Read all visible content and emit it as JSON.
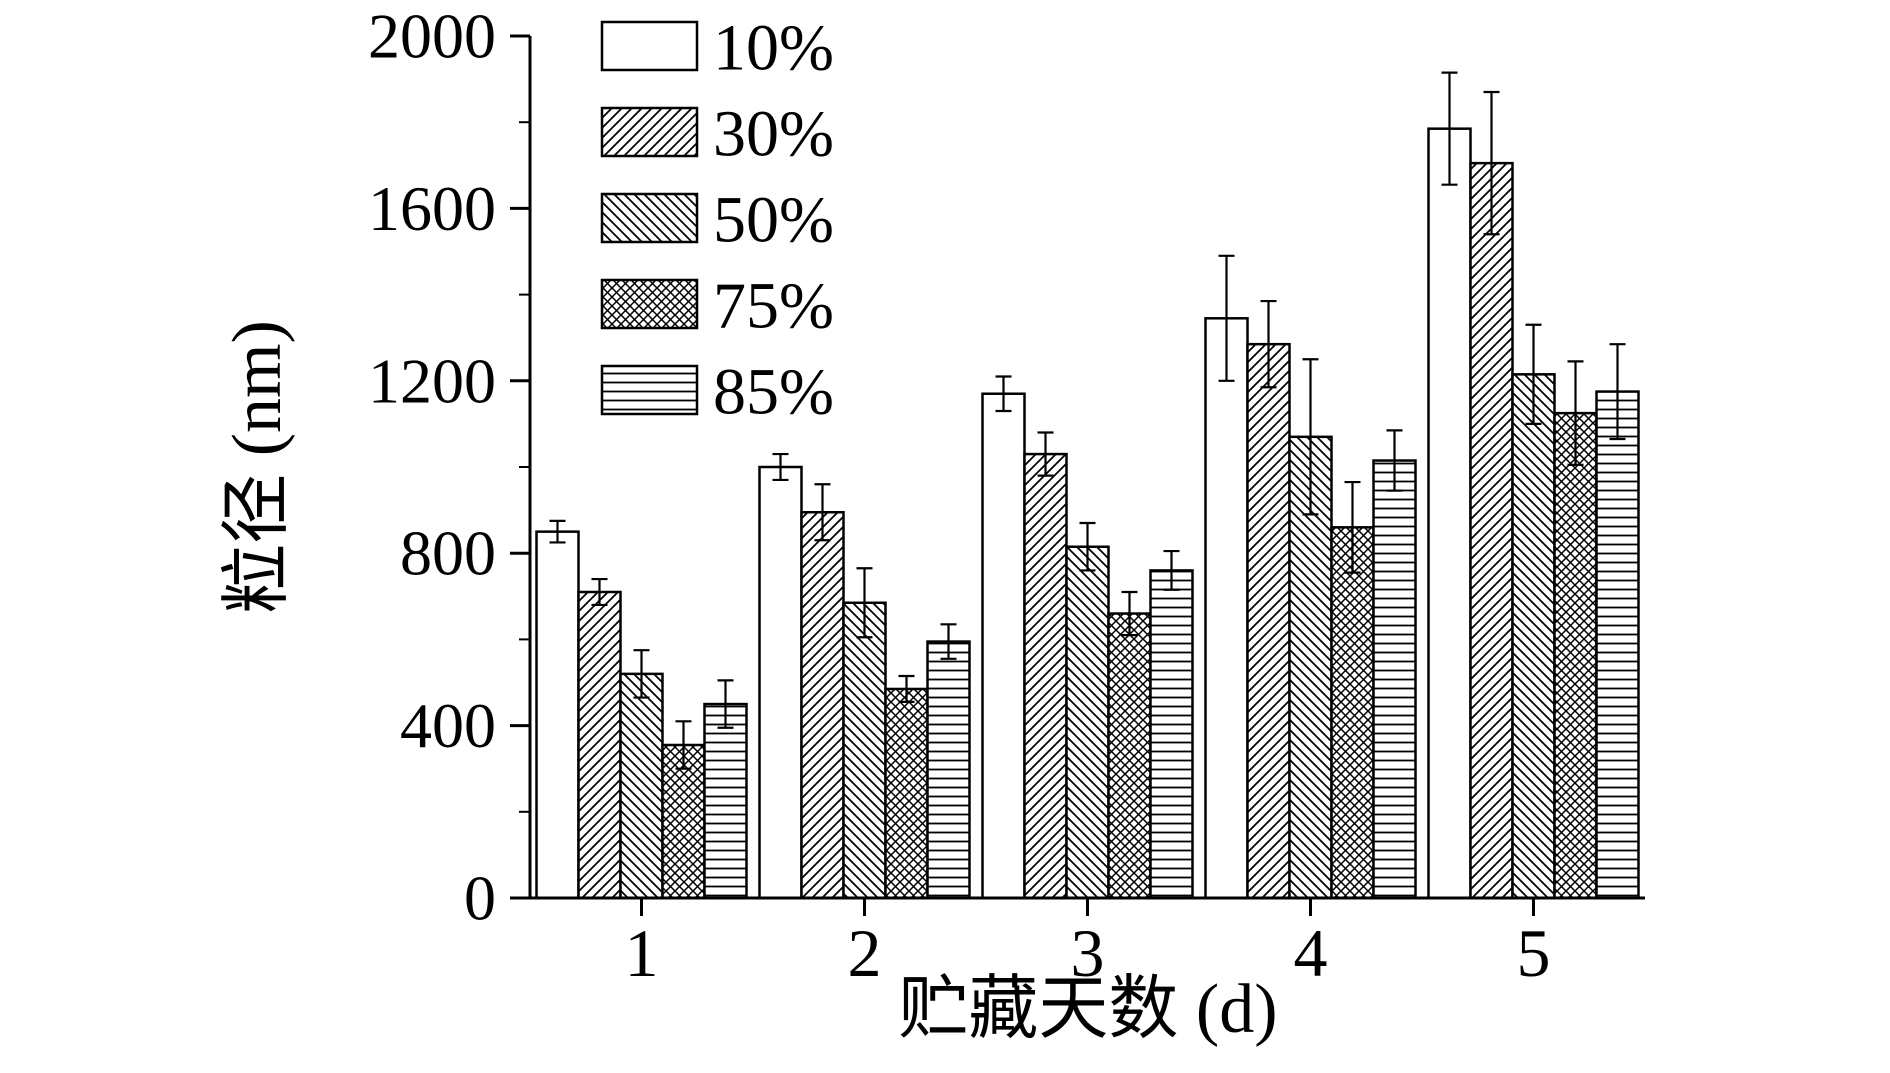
{
  "figure": {
    "background_color": "#ffffff",
    "axis_color": "#000000",
    "bar_edge_color": "#000000",
    "bar_fill_color": "#ffffff"
  },
  "chart_data": {
    "type": "bar",
    "title": "",
    "xlabel": "贮藏天数 (d)",
    "ylabel": "粒径 (nm)",
    "categories": [
      "1",
      "2",
      "3",
      "4",
      "5"
    ],
    "ylim": [
      0,
      2000
    ],
    "ytick_interval": 400,
    "yminor_interval": 200,
    "ytick_labels": [
      "0",
      "400",
      "800",
      "1200",
      "1600",
      "2000"
    ],
    "grid": false,
    "legend_position": "top-left-inside",
    "error_bars": true,
    "series": [
      {
        "name": "10%",
        "pattern": "plain",
        "values": [
          850,
          1000,
          1170,
          1345,
          1785
        ],
        "errors": [
          25,
          30,
          40,
          145,
          130
        ]
      },
      {
        "name": "30%",
        "pattern": "diagonal-up",
        "values": [
          710,
          895,
          1030,
          1285,
          1705
        ],
        "errors": [
          30,
          65,
          50,
          100,
          165
        ]
      },
      {
        "name": "50%",
        "pattern": "diagonal-down",
        "values": [
          520,
          685,
          815,
          1070,
          1215
        ],
        "errors": [
          55,
          80,
          55,
          180,
          115
        ]
      },
      {
        "name": "75%",
        "pattern": "crosshatch",
        "values": [
          355,
          485,
          660,
          860,
          1125
        ],
        "errors": [
          55,
          30,
          50,
          105,
          120
        ]
      },
      {
        "name": "85%",
        "pattern": "horizontal",
        "values": [
          450,
          595,
          760,
          1015,
          1175
        ],
        "errors": [
          55,
          40,
          45,
          70,
          110
        ]
      }
    ]
  }
}
